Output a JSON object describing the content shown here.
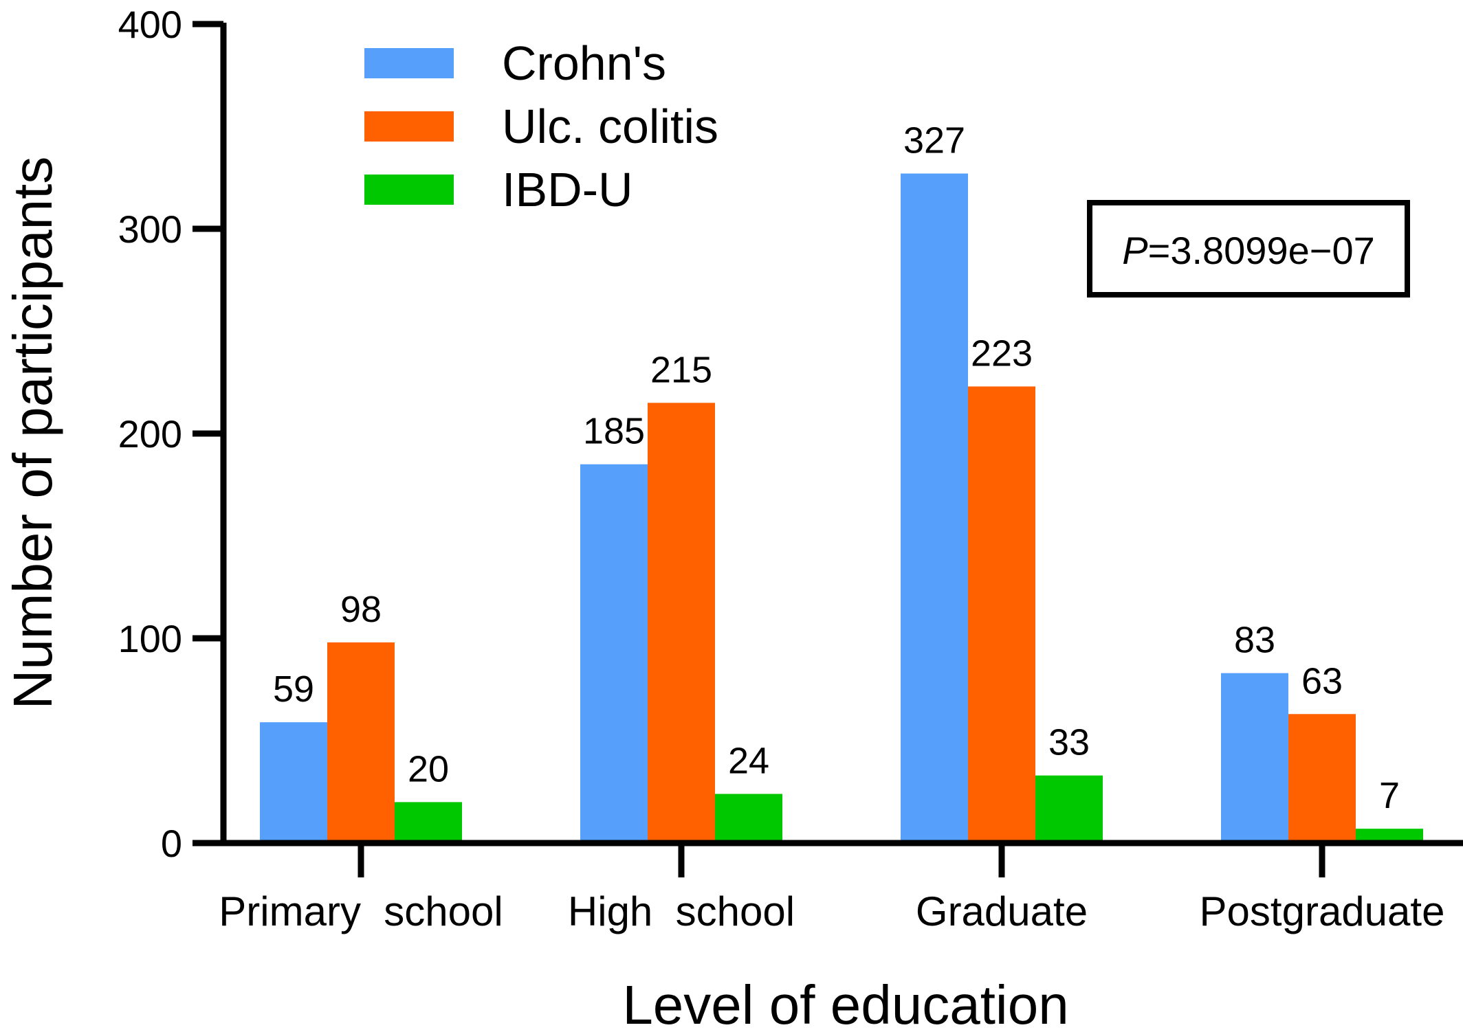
{
  "chart_data": {
    "type": "bar",
    "xlabel": "Level of education",
    "ylabel": "Number of participants",
    "ylim": [
      0,
      400
    ],
    "yticks": [
      0,
      100,
      200,
      300,
      400
    ],
    "grid": false,
    "legend_position": "top-left",
    "categories": [
      "Primary  school",
      "High  school",
      "Graduate",
      "Postgraduate"
    ],
    "series": [
      {
        "name": "Crohn's",
        "color": "#56A0FB",
        "values": [
          59,
          185,
          327,
          83
        ]
      },
      {
        "name": "Ulc. colitis",
        "color": "#FF6100",
        "values": [
          98,
          215,
          223,
          63
        ]
      },
      {
        "name": "IBD-U",
        "color": "#00C800",
        "values": [
          20,
          24,
          33,
          7
        ]
      }
    ],
    "annotation": {
      "p_symbol": "P",
      "p_value": "=3.8099e−07"
    }
  }
}
